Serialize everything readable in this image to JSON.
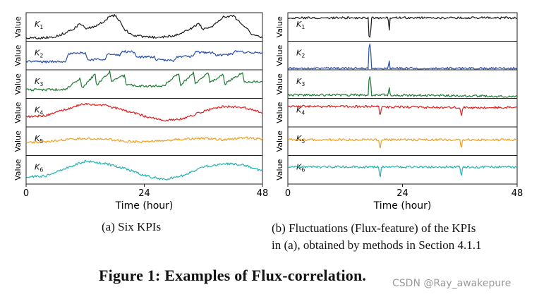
{
  "figure": {
    "title": "Figure 1: Examples of Flux-correlation.",
    "watermark": "CSDN @Ray_awakepure",
    "caption_a": "(a)  Six KPIs",
    "caption_b_line1": "(b)  Fluctuations (Flux-feature) of the KPIs",
    "caption_b_line2": "in (a), obtained by methods in Section 4.1.1"
  },
  "colors": {
    "K1": "#1a1a1a",
    "K2": "#2a4fa8",
    "K3": "#1e7a32",
    "K4": "#de2020",
    "K5": "#f0a020",
    "K6": "#22b3b3"
  },
  "chart_data": [
    {
      "type": "line",
      "panel": "a",
      "title": "Six KPIs",
      "xlabel": "Time (hour)",
      "ylabel": "Value",
      "xlim": [
        0,
        48
      ],
      "xticks": [
        "0",
        "24",
        "48"
      ],
      "grid": false,
      "series": [
        {
          "name": "K1",
          "x": [
            0,
            3,
            6,
            8,
            10,
            11,
            12,
            14,
            16,
            17,
            18,
            19,
            20,
            21,
            22,
            24,
            26,
            28,
            30,
            32,
            34,
            35,
            36,
            38,
            40,
            42,
            44,
            46,
            48
          ],
          "values": [
            0.12,
            0.12,
            0.16,
            0.3,
            0.48,
            0.62,
            0.45,
            0.5,
            0.72,
            0.88,
            0.9,
            0.72,
            0.4,
            0.3,
            0.2,
            0.16,
            0.14,
            0.15,
            0.2,
            0.32,
            0.5,
            0.62,
            0.42,
            0.55,
            0.85,
            0.9,
            0.6,
            0.22,
            0.12
          ]
        },
        {
          "name": "K2",
          "x": [
            0,
            4,
            8,
            8.5,
            12,
            12.5,
            16,
            16.5,
            19,
            19.5,
            22,
            22.5,
            26,
            26.5,
            30,
            30.5,
            34,
            34.5,
            38,
            38.5,
            42,
            42.5,
            48
          ],
          "values": [
            0.3,
            0.28,
            0.3,
            0.55,
            0.6,
            0.35,
            0.38,
            0.55,
            0.5,
            0.65,
            0.62,
            0.45,
            0.45,
            0.35,
            0.32,
            0.45,
            0.48,
            0.62,
            0.6,
            0.5,
            0.55,
            0.65,
            0.58
          ]
        },
        {
          "name": "K3",
          "x": [
            0,
            4,
            8,
            11,
            11.3,
            14,
            14.3,
            17,
            17.3,
            20,
            20.3,
            24,
            28,
            31,
            31.3,
            34,
            34.3,
            37,
            37.3,
            40,
            40.3,
            44,
            44.3,
            48
          ],
          "values": [
            0.3,
            0.3,
            0.32,
            0.7,
            0.35,
            0.85,
            0.45,
            0.95,
            0.6,
            0.8,
            0.5,
            0.42,
            0.45,
            0.88,
            0.45,
            0.9,
            0.5,
            0.9,
            0.55,
            0.85,
            0.5,
            0.9,
            0.55,
            0.6
          ]
        },
        {
          "name": "K4",
          "x": [
            0,
            4,
            8,
            12,
            16,
            20,
            24,
            28,
            32,
            36,
            40,
            44,
            48
          ],
          "values": [
            0.35,
            0.4,
            0.62,
            0.82,
            0.75,
            0.58,
            0.38,
            0.22,
            0.3,
            0.55,
            0.72,
            0.7,
            0.5
          ]
        },
        {
          "name": "K5",
          "x": [
            0,
            4,
            8,
            12,
            16,
            20,
            24,
            28,
            32,
            36,
            40,
            44,
            48
          ],
          "values": [
            0.45,
            0.48,
            0.55,
            0.6,
            0.58,
            0.5,
            0.48,
            0.52,
            0.58,
            0.6,
            0.55,
            0.62,
            0.58
          ]
        },
        {
          "name": "K6",
          "x": [
            0,
            4,
            8,
            12,
            16,
            20,
            24,
            28,
            32,
            36,
            40,
            44,
            48
          ],
          "values": [
            0.25,
            0.28,
            0.55,
            0.8,
            0.72,
            0.55,
            0.3,
            0.15,
            0.3,
            0.6,
            0.72,
            0.68,
            0.45
          ]
        }
      ]
    },
    {
      "type": "line",
      "panel": "b",
      "title": "Fluctuations (Flux-feature) of the KPIs",
      "xlabel": "Time (hour)",
      "ylabel": "Value",
      "xlim": [
        0,
        48
      ],
      "xticks": [
        "0",
        "24",
        "48"
      ],
      "grid": false,
      "series": [
        {
          "name": "K1",
          "x": [
            0,
            16.9,
            17,
            17.3,
            17.5,
            21,
            21.2,
            21.4,
            48
          ],
          "values": [
            0.82,
            0.82,
            0.1,
            0.15,
            0.82,
            0.82,
            0.35,
            0.82,
            0.82
          ]
        },
        {
          "name": "K2",
          "x": [
            0,
            16.9,
            17,
            17.3,
            17.5,
            21,
            21.2,
            21.4,
            48
          ],
          "values": [
            0.05,
            0.05,
            0.92,
            0.85,
            0.05,
            0.05,
            0.4,
            0.05,
            0.05
          ]
        },
        {
          "name": "K3",
          "x": [
            0,
            16.9,
            17,
            17.3,
            17.5,
            21,
            21.2,
            21.4,
            48
          ],
          "values": [
            0.12,
            0.12,
            0.75,
            0.7,
            0.12,
            0.12,
            0.38,
            0.12,
            0.06
          ]
        },
        {
          "name": "K4",
          "x": [
            0,
            19,
            19.3,
            19.6,
            36,
            36.3,
            36.6,
            48
          ],
          "values": [
            0.72,
            0.72,
            0.3,
            0.7,
            0.68,
            0.35,
            0.68,
            0.68
          ]
        },
        {
          "name": "K5",
          "x": [
            0,
            19,
            19.3,
            19.6,
            36,
            36.3,
            36.6,
            48
          ],
          "values": [
            0.55,
            0.55,
            0.15,
            0.55,
            0.55,
            0.25,
            0.55,
            0.55
          ]
        },
        {
          "name": "K6",
          "x": [
            0,
            19,
            19.3,
            19.6,
            36,
            36.3,
            36.6,
            48
          ],
          "values": [
            0.6,
            0.6,
            0.15,
            0.6,
            0.6,
            0.25,
            0.6,
            0.6
          ]
        }
      ]
    }
  ]
}
